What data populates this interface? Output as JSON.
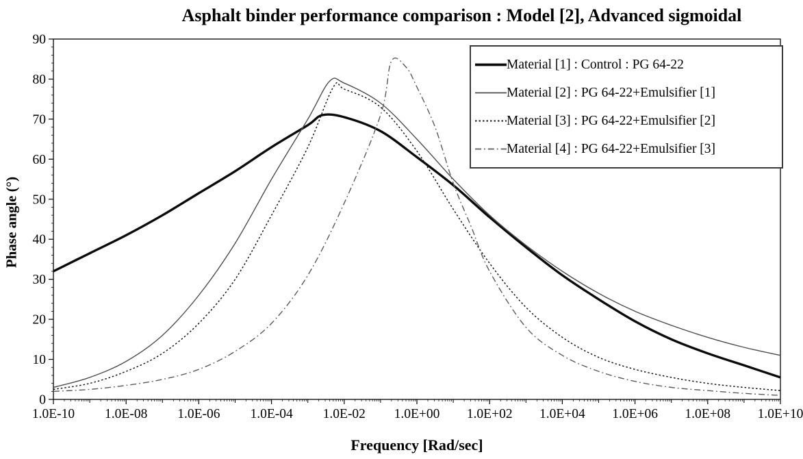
{
  "chart": {
    "title": "Asphalt binder performance comparison : Model [2], Advanced sigmoidal",
    "xlabel": "Frequency [Rad/sec]",
    "ylabel": "Phase angle (°)"
  },
  "chart_data": {
    "type": "line",
    "title": "Asphalt binder performance comparison : Model [2], Advanced sigmoidal",
    "xlabel": "Frequency [Rad/sec]",
    "ylabel": "Phase angle (°)",
    "x_scale": "log10",
    "x_range_decades": [
      -10,
      10
    ],
    "ylim": [
      0,
      90
    ],
    "y_tick_step": 10,
    "y_ticks": [
      0,
      10,
      20,
      30,
      40,
      50,
      60,
      70,
      80,
      90
    ],
    "x_tick_decades": [
      -10,
      -8,
      -6,
      -4,
      -2,
      0,
      2,
      4,
      6,
      8,
      10
    ],
    "x_tick_labels": [
      "1.0E-10",
      "1.0E-08",
      "1.0E-06",
      "1.0E-04",
      "1.0E-02",
      "1.0E+00",
      "1.0E+02",
      "1.0E+04",
      "1.0E+06",
      "1.0E+08",
      "1.0E+10"
    ],
    "grid": false,
    "legend_position": "top-right",
    "axis_color": "#000000",
    "series": [
      {
        "name": "Material [1] : Control : PG 64-22",
        "line_style": "solid",
        "color": "#0a0a0a",
        "width": 3.4,
        "points": [
          [
            -10,
            32
          ],
          [
            -9,
            36.5
          ],
          [
            -8,
            41
          ],
          [
            -7,
            46
          ],
          [
            -6,
            51.5
          ],
          [
            -5,
            57
          ],
          [
            -4,
            63
          ],
          [
            -3,
            68.5
          ],
          [
            -2.6,
            71
          ],
          [
            -2,
            70.5
          ],
          [
            -1,
            67
          ],
          [
            0,
            60.5
          ],
          [
            1,
            53.5
          ],
          [
            2,
            45.5
          ],
          [
            3,
            38
          ],
          [
            4,
            31
          ],
          [
            5,
            25
          ],
          [
            6,
            19.5
          ],
          [
            7,
            15
          ],
          [
            8,
            11.5
          ],
          [
            9,
            8.5
          ],
          [
            10,
            5.5
          ]
        ]
      },
      {
        "name": "Material [2] : PG 64-22+Emulsifier [1]",
        "line_style": "solid",
        "color": "#4d4d4d",
        "width": 1.4,
        "points": [
          [
            -10,
            3
          ],
          [
            -9,
            5.5
          ],
          [
            -8,
            9.5
          ],
          [
            -7,
            16
          ],
          [
            -6,
            26
          ],
          [
            -5,
            39
          ],
          [
            -4,
            55
          ],
          [
            -3,
            70
          ],
          [
            -2.4,
            79.5
          ],
          [
            -2,
            79
          ],
          [
            -1,
            74
          ],
          [
            0,
            65
          ],
          [
            1,
            55
          ],
          [
            2,
            46
          ],
          [
            3,
            38.5
          ],
          [
            4,
            32
          ],
          [
            5,
            26.5
          ],
          [
            6,
            22
          ],
          [
            7,
            18.5
          ],
          [
            8,
            15.5
          ],
          [
            9,
            13
          ],
          [
            10,
            11
          ]
        ]
      },
      {
        "name": "Material [3] : PG 64-22+Emulsifier [2]",
        "line_style": "dotted",
        "color": "#141414",
        "width": 1.5,
        "points": [
          [
            -10,
            2.5
          ],
          [
            -9,
            4
          ],
          [
            -8,
            7
          ],
          [
            -7,
            11.5
          ],
          [
            -6,
            19
          ],
          [
            -5,
            30
          ],
          [
            -4,
            46
          ],
          [
            -3,
            63
          ],
          [
            -2.3,
            78
          ],
          [
            -2,
            77.5
          ],
          [
            -1,
            73
          ],
          [
            0,
            62
          ],
          [
            1,
            47.5
          ],
          [
            2,
            34
          ],
          [
            3,
            23
          ],
          [
            4,
            15.5
          ],
          [
            5,
            10.5
          ],
          [
            6,
            7.5
          ],
          [
            7,
            5.5
          ],
          [
            8,
            4
          ],
          [
            9,
            3
          ],
          [
            10,
            2.2
          ]
        ]
      },
      {
        "name": "Material [4] : PG 64-22+Emulsifier [3]",
        "line_style": "dashdot",
        "color": "#5a5a5a",
        "width": 1.4,
        "points": [
          [
            -10,
            2
          ],
          [
            -9,
            2.5
          ],
          [
            -8,
            3.5
          ],
          [
            -7,
            5
          ],
          [
            -6,
            7.5
          ],
          [
            -5,
            12
          ],
          [
            -4,
            19
          ],
          [
            -3,
            31
          ],
          [
            -2,
            49
          ],
          [
            -1,
            71
          ],
          [
            -0.7,
            84.5
          ],
          [
            -0.3,
            83
          ],
          [
            0,
            78
          ],
          [
            0.5,
            68
          ],
          [
            1,
            54
          ],
          [
            1.5,
            43
          ],
          [
            2,
            32
          ],
          [
            3,
            18
          ],
          [
            4,
            11
          ],
          [
            5,
            7
          ],
          [
            6,
            4.5
          ],
          [
            7,
            3
          ],
          [
            8,
            2.2
          ],
          [
            9,
            1.5
          ],
          [
            10,
            1
          ]
        ]
      }
    ]
  }
}
